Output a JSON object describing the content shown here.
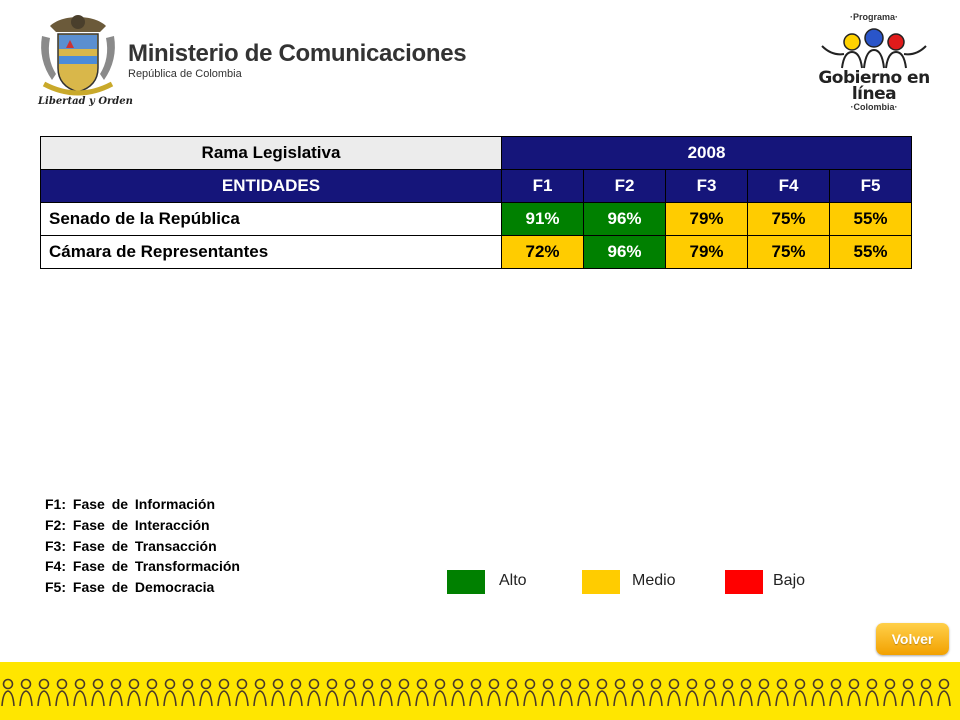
{
  "header": {
    "ministry_name": "Ministerio de Comunicaciones",
    "ministry_country": "República de Colombia",
    "ministry_motto": "Libertad y Orden",
    "program_top": "·Programa·",
    "program_name_line1": "Gobierno en línea",
    "program_country": "·Colombia·"
  },
  "table": {
    "branch_label": "Rama Legislativa",
    "year_label": "2008",
    "entities_label": "ENTIDADES",
    "phase_headers": [
      "F1",
      "F2",
      "F3",
      "F4",
      "F5"
    ],
    "rows": [
      {
        "entity": "Senado de la República",
        "values": [
          "91%",
          "96%",
          "79%",
          "75%",
          "55%"
        ],
        "levels": [
          "Alto",
          "Alto",
          "Medio",
          "Medio",
          "Medio"
        ]
      },
      {
        "entity": "Cámara de Representantes",
        "values": [
          "72%",
          "96%",
          "79%",
          "75%",
          "55%"
        ],
        "levels": [
          "Medio",
          "Alto",
          "Medio",
          "Medio",
          "Medio"
        ]
      }
    ]
  },
  "notes": [
    "F1: Fase de Información",
    "F2: Fase de Interacción",
    "F3: Fase de Transacción",
    "F4: Fase de Transformación",
    "F5: Fase de Democracia"
  ],
  "legend": [
    {
      "label": "Alto",
      "color": "#008000"
    },
    {
      "label": "Medio",
      "color": "#ffcc00"
    },
    {
      "label": "Bajo",
      "color": "#ff0000"
    }
  ],
  "volver_label": "Volver",
  "colors": {
    "header_dark": "#15157a",
    "footer_band": "#ffe600"
  }
}
